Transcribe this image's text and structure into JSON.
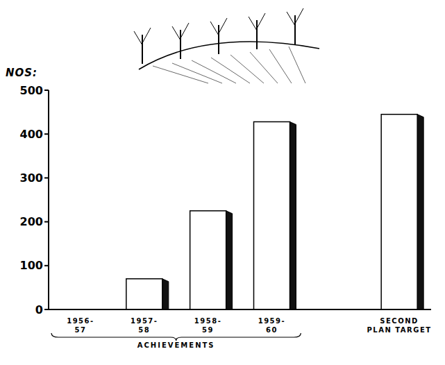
{
  "chart_data": {
    "type": "bar",
    "y_label": "NOS:",
    "categories": [
      "1956-57",
      "1957-58",
      "1958-59",
      "1959-60",
      null,
      "SECOND PLAN TARGET"
    ],
    "values": [
      0,
      70,
      225,
      428,
      null,
      445
    ],
    "color": "#ffffff",
    "ylim": [
      0,
      500
    ],
    "yticks": [
      0,
      100,
      200,
      300,
      400,
      500
    ],
    "grid": false,
    "annotation": "ACHIEVEMENTS"
  }
}
